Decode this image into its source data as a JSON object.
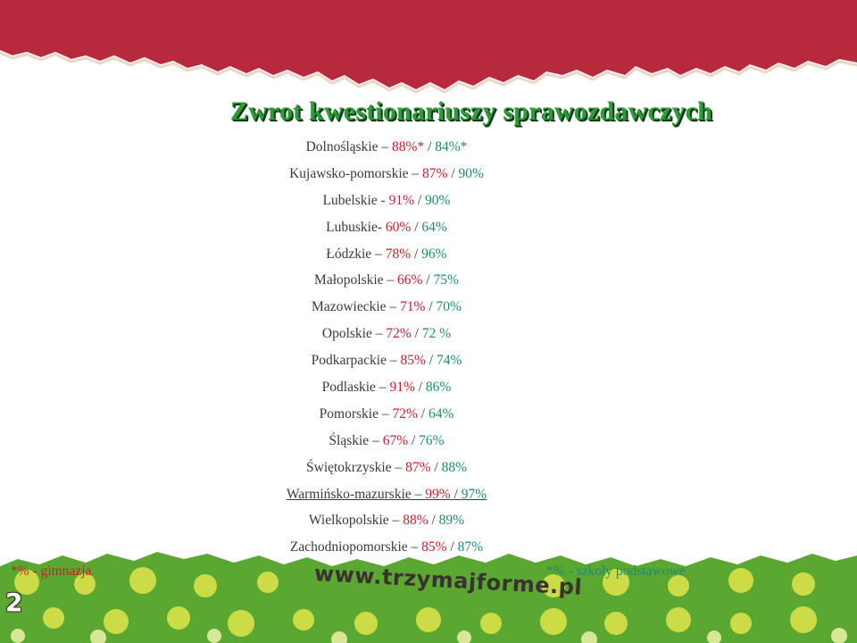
{
  "title": "Zwrot kwestionariuszy sprawozdawczych",
  "rows": [
    {
      "region": "Dolnośląskie –",
      "gimnazja": "88%*",
      "sep": " / ",
      "podstawowe": "84%*",
      "underlined": false
    },
    {
      "region": "Kujawsko-pomorskie –",
      "gimnazja": "87%",
      "sep": " / ",
      "podstawowe": "90%",
      "underlined": false
    },
    {
      "region": "Lubelskie -",
      "gimnazja": "91%",
      "sep": " / ",
      "podstawowe": "90%",
      "underlined": false
    },
    {
      "region": "Lubuskie-",
      "gimnazja": "60%",
      "sep": " / ",
      "podstawowe": "64%",
      "underlined": false
    },
    {
      "region": "Łódzkie –",
      "gimnazja": "78%",
      "sep": " / ",
      "podstawowe": "96%",
      "underlined": false
    },
    {
      "region": "Małopolskie –",
      "gimnazja": "66%",
      "sep": " / ",
      "podstawowe": "75%",
      "underlined": false
    },
    {
      "region": "Mazowieckie –",
      "gimnazja": "71%",
      "sep": " / ",
      "podstawowe": "70%",
      "underlined": false
    },
    {
      "region": "Opolskie –",
      "gimnazja": "72%",
      "sep": " / ",
      "podstawowe": "72 %",
      "underlined": false
    },
    {
      "region": "Podkarpackie –",
      "gimnazja": "85%",
      "sep": " / ",
      "podstawowe": "74%",
      "underlined": false
    },
    {
      "region": "Podlaskie –",
      "gimnazja": "91%",
      "sep": " / ",
      "podstawowe": "86%",
      "underlined": false
    },
    {
      "region": "Pomorskie –",
      "gimnazja": "72%",
      "sep": " / ",
      "podstawowe": "64%",
      "underlined": false
    },
    {
      "region": "Śląskie –",
      "gimnazja": "67%",
      "sep": " / ",
      "podstawowe": "76%",
      "underlined": false
    },
    {
      "region": "Świętokrzyskie –",
      "gimnazja": "87%",
      "sep": " / ",
      "podstawowe": "88%",
      "underlined": false
    },
    {
      "region": "Warmińsko-mazurskie –",
      "gimnazja": "99%",
      "sep": " / ",
      "podstawowe": "97%",
      "underlined": true
    },
    {
      "region": "Wielkopolskie –",
      "gimnazja": "88%",
      "sep": " / ",
      "podstawowe": "89%",
      "underlined": false
    },
    {
      "region": "Zachodniopomorskie –",
      "gimnazja": "85%",
      "sep": " / ",
      "podstawowe": "87%",
      "underlined": false
    }
  ],
  "notes": {
    "left": "*% - gimnazja",
    "right": "*% - szkoły podstawowe"
  },
  "footer": {
    "website": "www.trzymajforme.pl",
    "page_number": "2"
  },
  "colors": {
    "header_red": "#b72a3e",
    "title_green": "#2e9a3a",
    "gimnazja_red": "#c8202c",
    "podstawowe_green": "#1f8a6a",
    "footer_green": "#5aa832",
    "footer_dots": "#d8e24a"
  }
}
